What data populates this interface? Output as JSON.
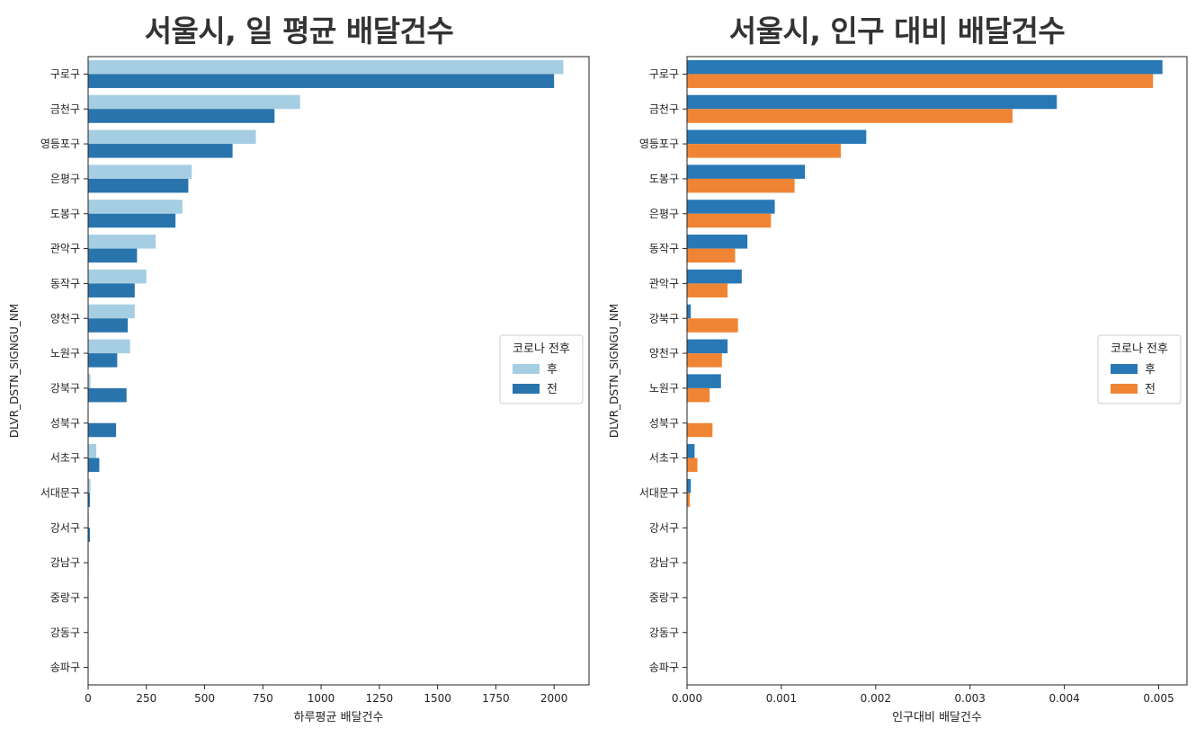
{
  "chart_data": [
    {
      "type": "bar",
      "orientation": "horizontal",
      "title": "서울시, 일 평균 배달건수",
      "xlabel": "하루평균 배달건수",
      "ylabel": "DLVR_DSTN_SIGNGU_NM",
      "categories": [
        "구로구",
        "금천구",
        "영등포구",
        "은평구",
        "도봉구",
        "관악구",
        "동작구",
        "양천구",
        "노원구",
        "강북구",
        "성북구",
        "서초구",
        "서대문구",
        "강서구",
        "강남구",
        "중랑구",
        "강동구",
        "송파구"
      ],
      "series": [
        {
          "name": "후",
          "color": "#a6cee3",
          "values": [
            2040,
            910,
            720,
            445,
            405,
            290,
            250,
            200,
            180,
            10,
            0,
            35,
            10,
            3,
            2,
            0,
            0,
            0
          ]
        },
        {
          "name": "전",
          "color": "#2a74ad",
          "values": [
            2000,
            800,
            620,
            430,
            375,
            210,
            200,
            170,
            125,
            165,
            120,
            48,
            8,
            8,
            2,
            0,
            0,
            0
          ]
        }
      ],
      "xlim": [
        0,
        2150
      ],
      "xticks": [
        0,
        250,
        500,
        750,
        1000,
        1250,
        1500,
        1750,
        2000
      ],
      "xtick_labels": [
        "0",
        "250",
        "500",
        "750",
        "1000",
        "1250",
        "1500",
        "1750",
        "2000"
      ],
      "legend": {
        "title": "코로나 전후",
        "placement": "center-right"
      },
      "grid": false
    },
    {
      "type": "bar",
      "orientation": "horizontal",
      "title": "서울시, 인구 대비 배달건수",
      "xlabel": "인구대비 배달건수",
      "ylabel": "DLVR_DSTN_SIGNGU_NM",
      "categories": [
        "구로구",
        "금천구",
        "영등포구",
        "도봉구",
        "은평구",
        "동작구",
        "관악구",
        "강북구",
        "양천구",
        "노원구",
        "성북구",
        "서초구",
        "서대문구",
        "강서구",
        "강남구",
        "중랑구",
        "강동구",
        "송파구"
      ],
      "series": [
        {
          "name": "후",
          "color": "#2878b5",
          "values": [
            0.00504,
            0.00392,
            0.0019,
            0.00125,
            0.00093,
            0.00064,
            0.00058,
            4e-05,
            0.00043,
            0.00036,
            0.0,
            8e-05,
            4e-05,
            0.0,
            0.0,
            0.0,
            0.0,
            0.0
          ]
        },
        {
          "name": "전",
          "color": "#ef8534",
          "values": [
            0.00494,
            0.00345,
            0.00163,
            0.00114,
            0.00089,
            0.00051,
            0.00043,
            0.00054,
            0.00037,
            0.00024,
            0.00027,
            0.00011,
            3e-05,
            0.0,
            0.0,
            0.0,
            0.0,
            0.0
          ]
        }
      ],
      "xlim": [
        0,
        0.0053
      ],
      "xticks": [
        0,
        0.001,
        0.002,
        0.003,
        0.004,
        0.005
      ],
      "xtick_labels": [
        "0.000",
        "0.001",
        "0.002",
        "0.003",
        "0.004",
        "0.005"
      ],
      "legend": {
        "title": "코로나 전후",
        "placement": "center-right"
      },
      "grid": false
    }
  ]
}
